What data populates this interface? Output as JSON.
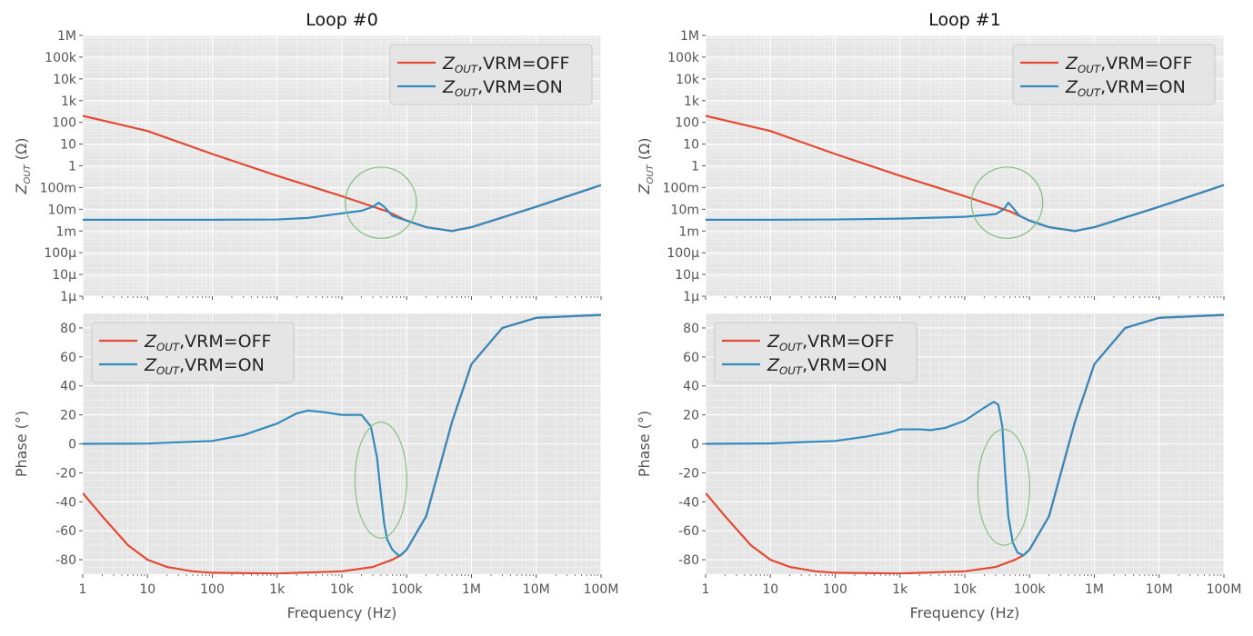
{
  "figure": {
    "background": "#ffffff",
    "axes_background": "#e5e5e5"
  },
  "colors": {
    "off": "#e24a33",
    "on": "#348abd",
    "annotation": "#7fbf7b",
    "grid": "#ffffff"
  },
  "legend_labels": {
    "off": {
      "symbol": "Z",
      "sub": "OUT",
      "suffix": ",VRM=OFF"
    },
    "on": {
      "symbol": "Z",
      "sub": "OUT",
      "suffix": ",VRM=ON"
    }
  },
  "axis_text": {
    "x_label": "Frequency (Hz)",
    "mag_ylabel": {
      "symbol": "Z",
      "sub": "OUT",
      "suffix": " (Ω)"
    },
    "phase_ylabel": "Phase (°)"
  },
  "chart_data": [
    {
      "type": "line",
      "title": "Loop #0",
      "panel": "magnitude",
      "xscale": "log",
      "yscale": "log",
      "xlim": [
        1,
        100000000
      ],
      "ylim": [
        1e-06,
        1000000
      ],
      "xticks": [
        1,
        10,
        100,
        1000,
        10000,
        100000,
        1000000,
        10000000,
        100000000
      ],
      "yticks": [
        1e-06,
        1e-05,
        0.0001,
        0.001,
        0.01,
        0.1,
        1,
        10,
        100,
        1000,
        10000,
        100000,
        1000000
      ],
      "ytick_labels": [
        "1µ",
        "10µ",
        "100µ",
        "1m",
        "10m",
        "100m",
        "1",
        "10",
        "100",
        "1k",
        "10k",
        "100k",
        "1M"
      ],
      "legend": "top-right",
      "grid": true,
      "series": [
        {
          "name": "off",
          "x": [
            1,
            10,
            100,
            1000,
            10000,
            20000,
            50000,
            100000,
            200000,
            500000,
            1000000,
            10000000,
            100000000
          ],
          "y": [
            200,
            40,
            3.5,
            0.35,
            0.04,
            0.02,
            0.008,
            0.003,
            0.0015,
            0.001,
            0.0015,
            0.013,
            0.13
          ]
        },
        {
          "name": "on",
          "x": [
            1,
            10,
            100,
            1000,
            3000,
            10000,
            20000,
            30000,
            37000,
            45000,
            60000,
            100000,
            200000,
            500000,
            1000000,
            10000000,
            100000000
          ],
          "y": [
            0.0033,
            0.0033,
            0.0033,
            0.0034,
            0.004,
            0.0065,
            0.0085,
            0.013,
            0.02,
            0.013,
            0.005,
            0.003,
            0.0015,
            0.001,
            0.0015,
            0.013,
            0.13
          ]
        }
      ],
      "annotation": {
        "shape": "circle",
        "center": [
          40000,
          0.02
        ],
        "radius_decades": 0.55
      }
    },
    {
      "type": "line",
      "title": "Loop #1",
      "panel": "magnitude",
      "xscale": "log",
      "yscale": "log",
      "xlim": [
        1,
        100000000
      ],
      "ylim": [
        1e-06,
        1000000
      ],
      "xticks": [
        1,
        10,
        100,
        1000,
        10000,
        100000,
        1000000,
        10000000,
        100000000
      ],
      "yticks": [
        1e-06,
        1e-05,
        0.0001,
        0.001,
        0.01,
        0.1,
        1,
        10,
        100,
        1000,
        10000,
        100000,
        1000000
      ],
      "ytick_labels": [
        "1µ",
        "10µ",
        "100µ",
        "1m",
        "10m",
        "100m",
        "1",
        "10",
        "100",
        "1k",
        "10k",
        "100k",
        "1M"
      ],
      "legend": "top-right",
      "grid": true,
      "series": [
        {
          "name": "off",
          "x": [
            1,
            10,
            100,
            1000,
            10000,
            20000,
            50000,
            100000,
            200000,
            500000,
            1000000,
            10000000,
            100000000
          ],
          "y": [
            200,
            40,
            3.5,
            0.35,
            0.04,
            0.02,
            0.008,
            0.003,
            0.0015,
            0.001,
            0.0015,
            0.013,
            0.13
          ]
        },
        {
          "name": "on",
          "x": [
            1,
            10,
            100,
            1000,
            10000,
            30000,
            40000,
            47000,
            55000,
            70000,
            100000,
            200000,
            500000,
            1000000,
            10000000,
            100000000
          ],
          "y": [
            0.0033,
            0.0033,
            0.0034,
            0.0037,
            0.0045,
            0.006,
            0.01,
            0.02,
            0.012,
            0.005,
            0.003,
            0.0015,
            0.001,
            0.0015,
            0.013,
            0.13
          ]
        }
      ],
      "annotation": {
        "shape": "circle",
        "center": [
          45000,
          0.02
        ],
        "radius_decades": 0.55
      }
    },
    {
      "type": "line",
      "title": "",
      "panel": "phase",
      "xscale": "log",
      "xlim": [
        1,
        100000000
      ],
      "ylim": [
        -90,
        90
      ],
      "xticks": [
        1,
        10,
        100,
        1000,
        10000,
        100000,
        1000000,
        10000000,
        100000000
      ],
      "xtick_labels": [
        "1",
        "10",
        "100",
        "1k",
        "10k",
        "100k",
        "1M",
        "10M",
        "100M"
      ],
      "yticks": [
        -80,
        -60,
        -40,
        -20,
        0,
        20,
        40,
        60,
        80
      ],
      "legend": "top-left",
      "grid": true,
      "series": [
        {
          "name": "off",
          "x": [
            1,
            2,
            5,
            10,
            20,
            50,
            100,
            1000,
            10000,
            30000,
            60000,
            80000,
            100000,
            200000,
            500000,
            1000000,
            3000000,
            10000000,
            100000000
          ],
          "y": [
            -34,
            -50,
            -70,
            -80,
            -85,
            -88,
            -89,
            -89.5,
            -88,
            -85,
            -80,
            -77,
            -73,
            -50,
            15,
            55,
            80,
            87,
            89
          ]
        },
        {
          "name": "on",
          "x": [
            1,
            10,
            100,
            300,
            1000,
            2000,
            3000,
            5000,
            10000,
            20000,
            28000,
            35000,
            40000,
            45000,
            50000,
            60000,
            75000,
            80000,
            100000,
            200000,
            500000,
            1000000,
            3000000,
            10000000,
            100000000
          ],
          "y": [
            0,
            0.2,
            2,
            6,
            14,
            21,
            23,
            22,
            20,
            20,
            12,
            -10,
            -35,
            -55,
            -66,
            -73,
            -77,
            -77,
            -73,
            -50,
            15,
            55,
            80,
            87,
            89
          ]
        }
      ],
      "annotation": {
        "shape": "ellipse",
        "center": [
          40000,
          -25
        ],
        "rx_decades": 0.4,
        "ry_deg": 40
      }
    },
    {
      "type": "line",
      "title": "",
      "panel": "phase",
      "xscale": "log",
      "xlim": [
        1,
        100000000
      ],
      "ylim": [
        -90,
        90
      ],
      "xticks": [
        1,
        10,
        100,
        1000,
        10000,
        100000,
        1000000,
        10000000,
        100000000
      ],
      "xtick_labels": [
        "1",
        "10",
        "100",
        "1k",
        "10k",
        "100k",
        "1M",
        "10M",
        "100M"
      ],
      "yticks": [
        -80,
        -60,
        -40,
        -20,
        0,
        20,
        40,
        60,
        80
      ],
      "legend": "top-left",
      "grid": true,
      "series": [
        {
          "name": "off",
          "x": [
            1,
            2,
            5,
            10,
            20,
            50,
            100,
            1000,
            10000,
            30000,
            60000,
            80000,
            100000,
            200000,
            500000,
            1000000,
            3000000,
            10000000,
            100000000
          ],
          "y": [
            -34,
            -50,
            -70,
            -80,
            -85,
            -88,
            -89,
            -89.5,
            -88,
            -85,
            -80,
            -77,
            -73,
            -50,
            15,
            55,
            80,
            87,
            89
          ]
        },
        {
          "name": "on",
          "x": [
            1,
            10,
            100,
            300,
            700,
            1000,
            2000,
            3000,
            5000,
            10000,
            20000,
            28000,
            33000,
            38000,
            42000,
            47000,
            55000,
            65000,
            80000,
            100000,
            200000,
            500000,
            1000000,
            3000000,
            10000000,
            100000000
          ],
          "y": [
            0,
            0.3,
            2,
            5,
            8,
            10,
            10,
            9.5,
            11,
            16,
            25,
            29,
            27,
            12,
            -20,
            -50,
            -68,
            -75,
            -77,
            -73,
            -50,
            15,
            55,
            80,
            87,
            89
          ]
        }
      ],
      "annotation": {
        "shape": "ellipse",
        "center": [
          40000,
          -30
        ],
        "rx_decades": 0.4,
        "ry_deg": 40
      }
    }
  ]
}
